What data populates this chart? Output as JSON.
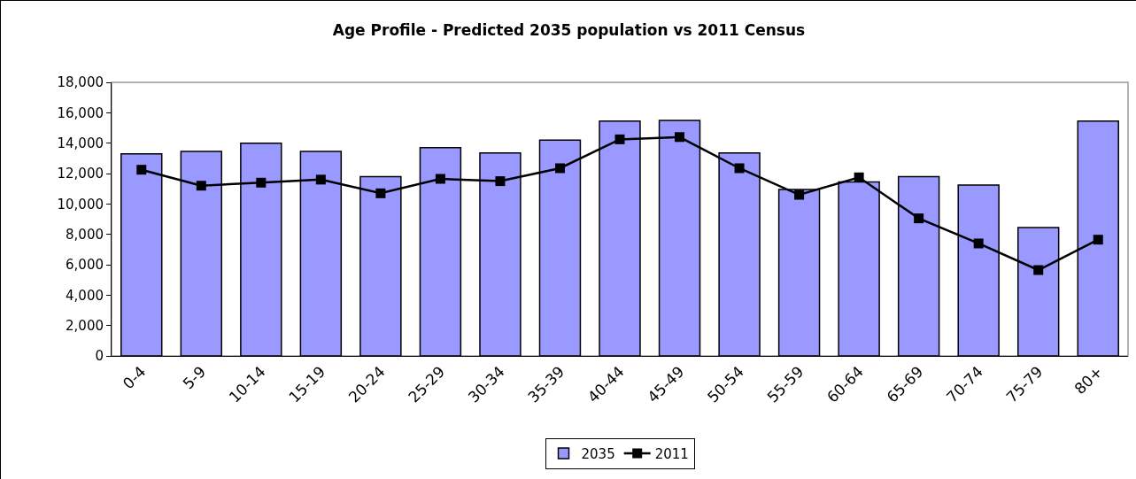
{
  "chart_data": {
    "type": "bar",
    "title": "Age Profile - Predicted 2035 population vs 2011 Census",
    "categories": [
      "0-4",
      "5-9",
      "10-14",
      "15-19",
      "20-24",
      "25-29",
      "30-34",
      "35-39",
      "40-44",
      "45-49",
      "50-54",
      "55-59",
      "60-64",
      "65-69",
      "70-74",
      "75-79",
      "80+"
    ],
    "series": [
      {
        "name": "2035",
        "color": "#9999ff",
        "values": [
          13300,
          13450,
          14000,
          13450,
          11800,
          13700,
          13350,
          14200,
          15450,
          15500,
          13350,
          10950,
          11450,
          11800,
          11250,
          8450,
          15450
        ]
      },
      {
        "name": "2011",
        "type": "line",
        "color": "#000000",
        "values": [
          12250,
          11200,
          11400,
          11600,
          10700,
          11650,
          11500,
          12350,
          14250,
          14400,
          12350,
          10600,
          11750,
          9050,
          7400,
          5650,
          7650
        ]
      }
    ],
    "ylim": [
      0,
      18000
    ],
    "yticks": [
      {
        "value": 0,
        "label": "0"
      },
      {
        "value": 2000,
        "label": "2,000"
      },
      {
        "value": 4000,
        "label": "4,000"
      },
      {
        "value": 6000,
        "label": "6,000"
      },
      {
        "value": 8000,
        "label": "8,000"
      },
      {
        "value": 10000,
        "label": "10,000"
      },
      {
        "value": 12000,
        "label": "12,000"
      },
      {
        "value": 14000,
        "label": "14,000"
      },
      {
        "value": 16000,
        "label": "16,000"
      },
      {
        "value": 18000,
        "label": "18,000"
      }
    ],
    "grid": false,
    "legend": "bottom",
    "marker": "square",
    "line_style": "solid"
  }
}
